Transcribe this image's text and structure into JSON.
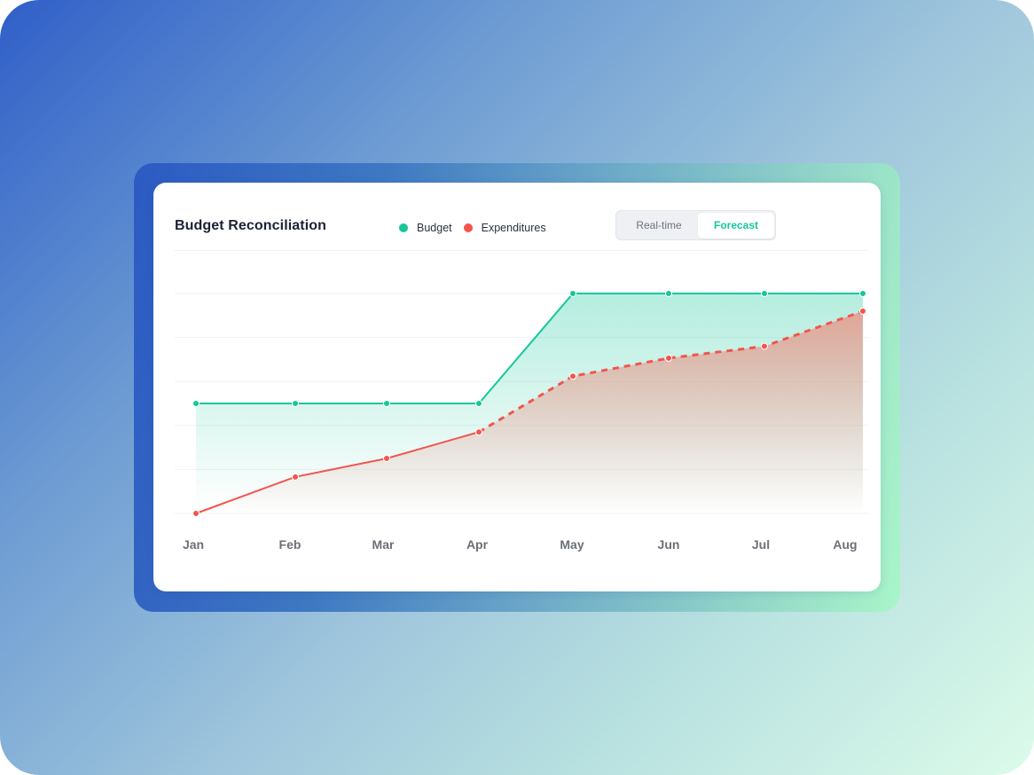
{
  "card": {
    "title": "Budget Reconciliation",
    "toggle": {
      "options": [
        "Real-time",
        "Forecast"
      ],
      "selected": "Forecast"
    }
  },
  "colors": {
    "budget": "#16c79a",
    "expenditures": "#f2554e",
    "forecast_active": "#16c79a"
  },
  "chart_data": {
    "type": "area",
    "title": "Budget Reconciliation",
    "categories": [
      "Jan",
      "Feb",
      "Mar",
      "Apr",
      "May",
      "Jun",
      "Jul",
      "Aug"
    ],
    "ylim": [
      0,
      5
    ],
    "grid": true,
    "legend_position": "top",
    "y_tick_labels_shown": false,
    "series": [
      {
        "name": "Budget",
        "values": [
          2.5,
          2.5,
          2.5,
          2.5,
          5.0,
          5.0,
          5.0,
          5.0
        ],
        "line_style": "solid"
      },
      {
        "name": "Expenditures",
        "values": [
          0.0,
          0.83,
          1.25,
          1.85,
          3.12,
          3.53,
          3.8,
          4.6
        ],
        "line_style": "solid through Apr, dashed (forecast) from Apr to Aug"
      }
    ]
  }
}
